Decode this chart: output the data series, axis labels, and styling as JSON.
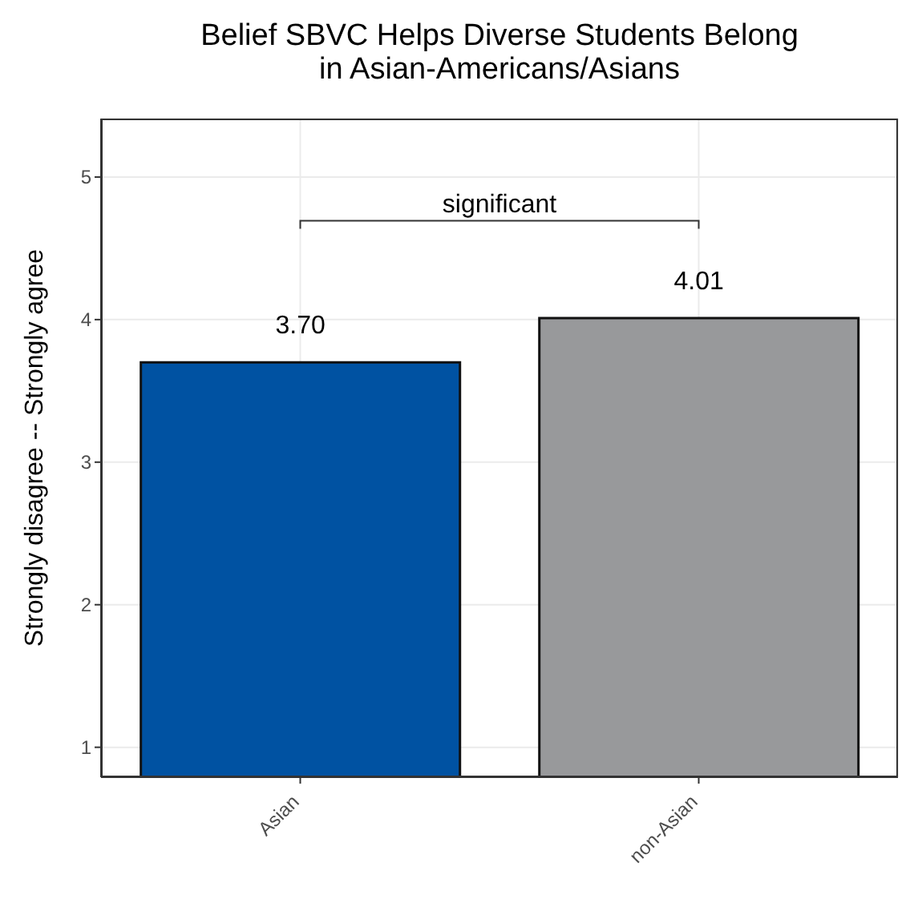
{
  "chart_data": {
    "type": "bar",
    "title": "Belief SBVC Helps Diverse Students Belong\nin Asian-Americans/Asians",
    "ylabel": "Strongly disagree -- Strongly agree",
    "categories": [
      "Asian",
      "non-Asian"
    ],
    "values": [
      3.7,
      4.01
    ],
    "colors": [
      "#0052a2",
      "#98999b"
    ],
    "value_labels": [
      "3.70",
      "4.01"
    ],
    "ylim": [
      0.79,
      5.41
    ],
    "yticks": [
      1,
      2,
      3,
      4,
      5
    ],
    "grid": true,
    "annotations": [
      "significant"
    ]
  }
}
